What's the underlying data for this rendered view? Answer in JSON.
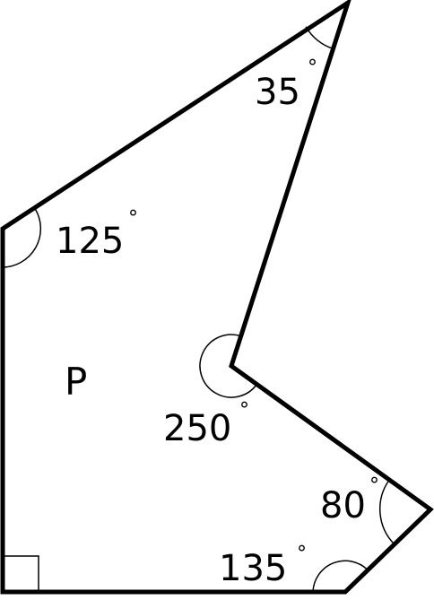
{
  "figure": {
    "shape_label": "P",
    "line_color": "#000000",
    "background": "#ffffff",
    "angles": [
      {
        "value": "35",
        "unit": "°",
        "vertex": "top"
      },
      {
        "value": "125",
        "unit": "°",
        "vertex": "upper-left"
      },
      {
        "value": "250",
        "unit": "°",
        "vertex": "reflex-inner"
      },
      {
        "value": "80",
        "unit": "°",
        "vertex": "right"
      },
      {
        "value": "135",
        "unit": "°",
        "vertex": "bottom-right"
      }
    ],
    "right_angle_marker": "square-corner-bottom-left"
  }
}
